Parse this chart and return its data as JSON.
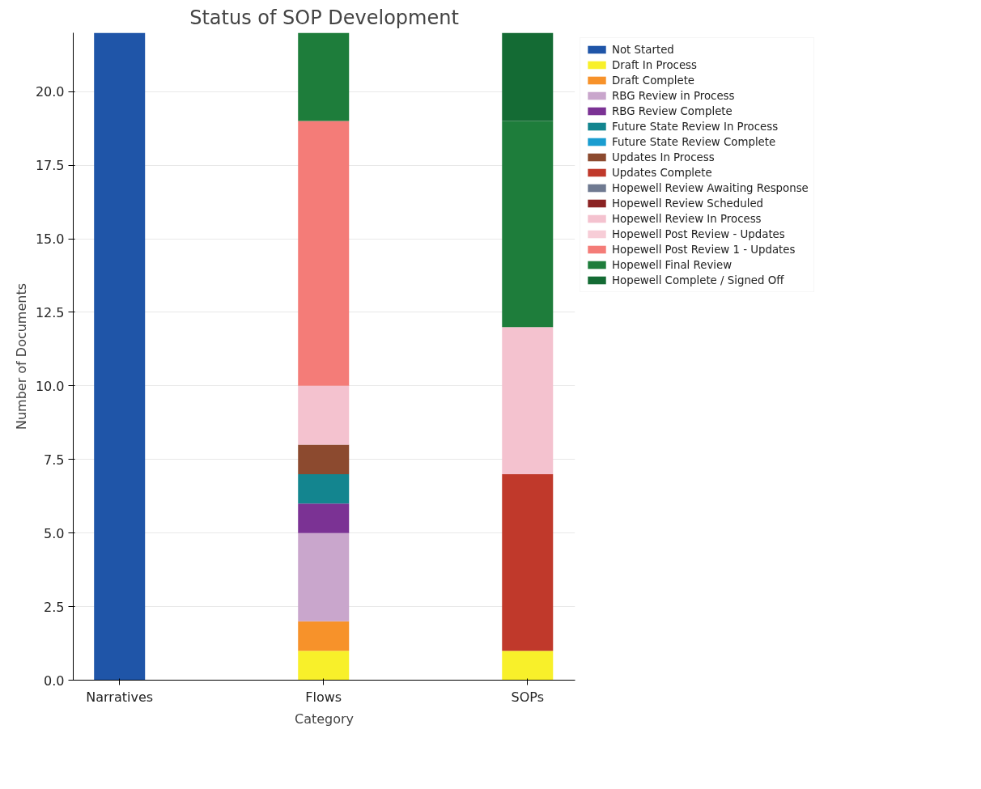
{
  "chart_data": {
    "type": "bar",
    "stacked": true,
    "title": "Status of SOP Development",
    "xlabel": "Category",
    "ylabel": "Number of Documents",
    "categories": [
      "Narratives",
      "Flows",
      "SOPs"
    ],
    "ylim": [
      0,
      22
    ],
    "yticks": [
      {
        "value": 0,
        "label": "0.0"
      },
      {
        "value": 2.5,
        "label": "2.5"
      },
      {
        "value": 5,
        "label": "5.0"
      },
      {
        "value": 7.5,
        "label": "7.5"
      },
      {
        "value": 10,
        "label": "10.0"
      },
      {
        "value": 12.5,
        "label": "12.5"
      },
      {
        "value": 15,
        "label": "15.0"
      },
      {
        "value": 17.5,
        "label": "17.5"
      },
      {
        "value": 20,
        "label": "20.0"
      }
    ],
    "grid": "y",
    "legend": "top right",
    "series": [
      {
        "name": "Not Started",
        "color": "#1f55a8",
        "values": [
          22,
          0,
          0
        ]
      },
      {
        "name": "Draft In Process",
        "color": "#f8f02a",
        "values": [
          0,
          1,
          1
        ]
      },
      {
        "name": "Draft Complete",
        "color": "#f7922a",
        "values": [
          0,
          1,
          0
        ]
      },
      {
        "name": "RBG Review in Process",
        "color": "#c9a6cc",
        "values": [
          0,
          3,
          0
        ]
      },
      {
        "name": "RBG Review Complete",
        "color": "#7b3294",
        "values": [
          0,
          1,
          0
        ]
      },
      {
        "name": "Future State Review In Process",
        "color": "#13858f",
        "values": [
          0,
          1,
          0
        ]
      },
      {
        "name": "Future State Review Complete",
        "color": "#1a9dd0",
        "values": [
          0,
          0,
          0
        ]
      },
      {
        "name": "Updates In Process",
        "color": "#8c4a2f",
        "values": [
          0,
          1,
          0
        ]
      },
      {
        "name": "Updates Complete",
        "color": "#c0392b",
        "values": [
          0,
          0,
          6
        ]
      },
      {
        "name": "Hopewell Review Awaiting Response",
        "color": "#6f7a91",
        "values": [
          0,
          0,
          0
        ]
      },
      {
        "name": "Hopewell Review Scheduled",
        "color": "#8b2323",
        "values": [
          0,
          0,
          0
        ]
      },
      {
        "name": "Hopewell Review In Process",
        "color": "#f4c2cf",
        "values": [
          0,
          2,
          5
        ]
      },
      {
        "name": "Hopewell Post Review - Updates",
        "color": "#f7cdd7",
        "values": [
          0,
          0,
          0
        ]
      },
      {
        "name": "Hopewell Post Review 1 - Updates",
        "color": "#f47c78",
        "values": [
          0,
          9,
          0
        ]
      },
      {
        "name": "Hopewell Final Review",
        "color": "#1e7d3b",
        "values": [
          0,
          3,
          7
        ]
      },
      {
        "name": "Hopewell Complete / Signed Off",
        "color": "#146b34",
        "values": [
          0,
          0,
          3
        ]
      }
    ]
  }
}
